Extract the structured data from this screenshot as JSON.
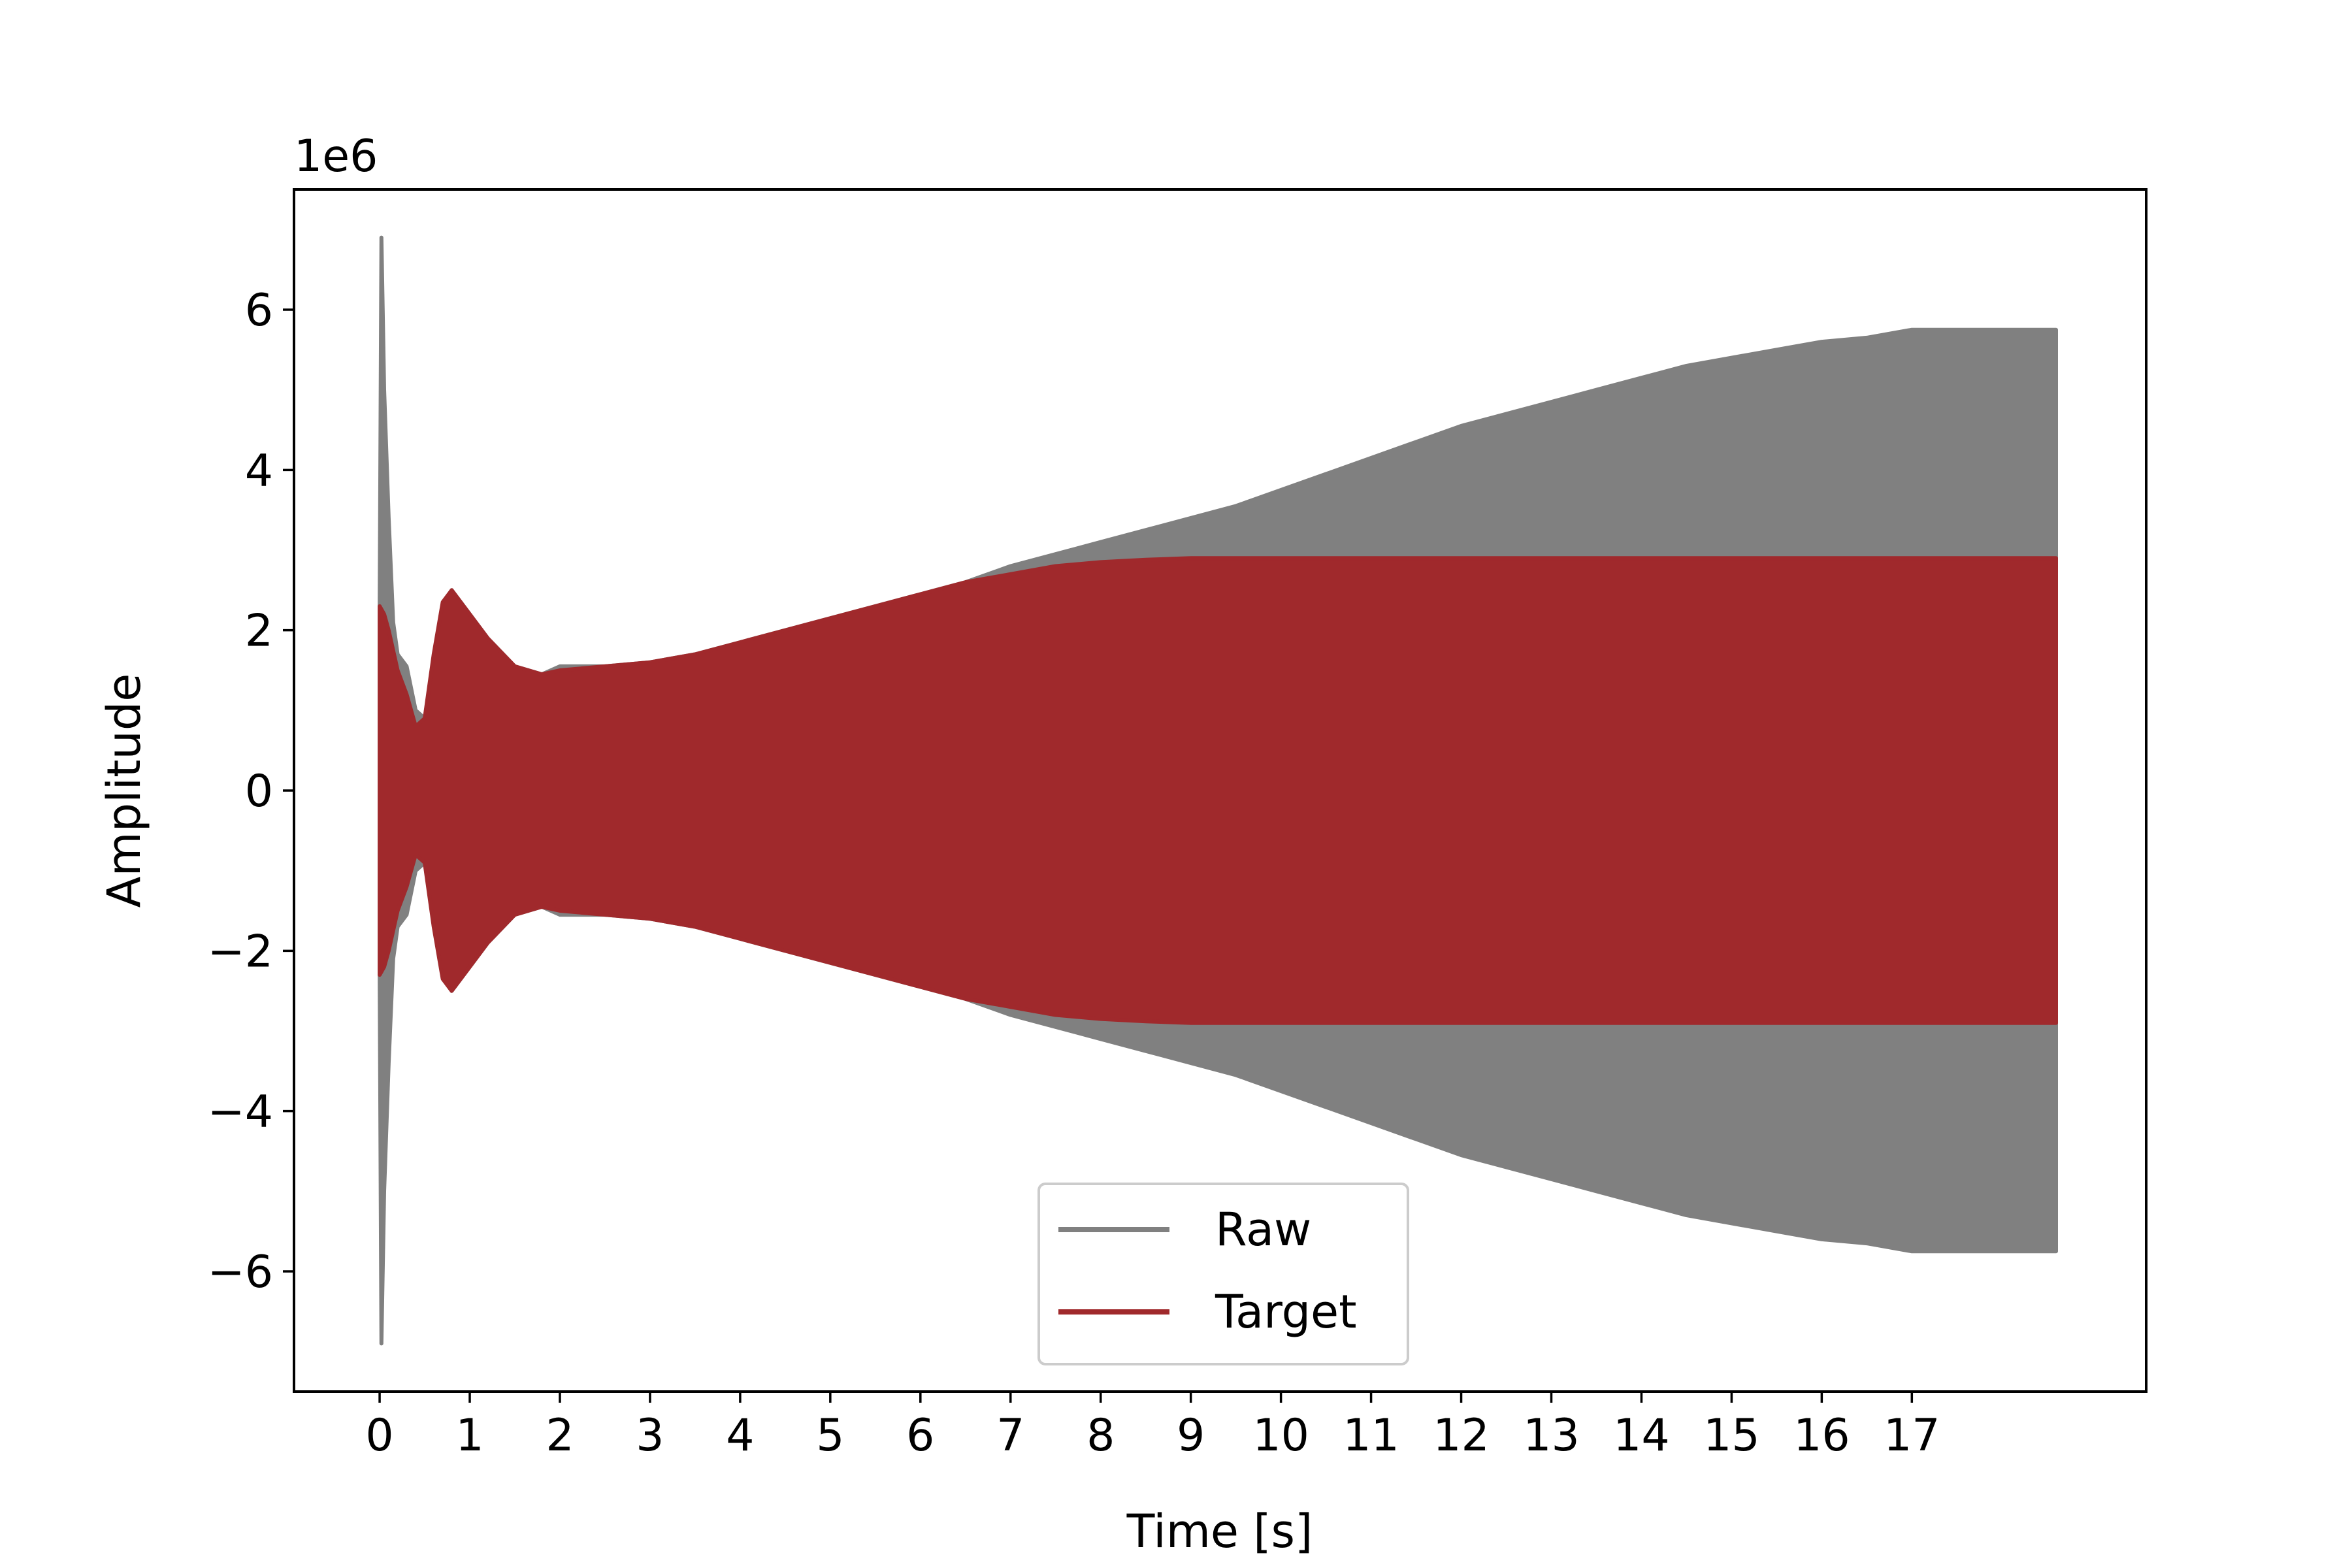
{
  "chart_data": {
    "type": "line",
    "title": "",
    "xlabel": "Time [s]",
    "ylabel": "Amplitude",
    "y_offset_label": "1e6",
    "xlim": [
      -0.95,
      19.6
    ],
    "ylim": [
      -7.5,
      7.5
    ],
    "x_ticks": [
      0,
      1,
      2,
      3,
      4,
      5,
      6,
      7,
      8,
      9,
      10,
      11,
      12,
      13,
      14,
      15,
      16,
      17
    ],
    "y_ticks": [
      -6,
      -4,
      -2,
      0,
      2,
      4,
      6
    ],
    "y_tick_labels": [
      "−6",
      "−4",
      "−2",
      "0",
      "2",
      "4",
      "6"
    ],
    "grid": false,
    "legend": {
      "placement": "lower-center",
      "entries": [
        "Raw",
        "Target"
      ]
    },
    "series": [
      {
        "name": "Raw",
        "color": "#808080",
        "envelope": {
          "x": [
            0.0,
            0.02,
            0.05,
            0.1,
            0.15,
            0.2,
            0.3,
            0.4,
            0.5,
            0.6,
            0.7,
            0.8,
            1.0,
            1.2,
            1.5,
            1.8,
            2.0,
            2.5,
            3.0,
            3.5,
            4.0,
            4.5,
            5.0,
            5.5,
            6.0,
            6.5,
            7.0,
            7.5,
            8.0,
            8.5,
            9.0,
            9.5,
            10.0,
            10.5,
            11.0,
            11.5,
            12.0,
            12.5,
            13.0,
            13.5,
            14.0,
            14.5,
            15.0,
            15.5,
            16.0,
            16.5,
            17.0,
            17.5,
            18.0,
            18.6
          ],
          "upper": [
            2.3,
            6.9,
            5.0,
            3.4,
            2.1,
            1.7,
            1.55,
            1.0,
            0.9,
            1.6,
            2.3,
            2.5,
            2.2,
            1.9,
            1.55,
            1.45,
            1.55,
            1.55,
            1.6,
            1.7,
            1.85,
            2.0,
            2.15,
            2.3,
            2.45,
            2.6,
            2.8,
            2.95,
            3.1,
            3.25,
            3.4,
            3.55,
            3.75,
            3.95,
            4.15,
            4.35,
            4.55,
            4.7,
            4.85,
            5.0,
            5.15,
            5.3,
            5.4,
            5.5,
            5.6,
            5.65,
            5.75,
            5.75,
            5.75,
            5.75
          ]
        }
      },
      {
        "name": "Target",
        "color": "#a0292c",
        "envelope": {
          "x": [
            0.0,
            0.05,
            0.1,
            0.2,
            0.3,
            0.4,
            0.5,
            0.6,
            0.7,
            0.8,
            1.0,
            1.2,
            1.5,
            1.8,
            2.0,
            2.5,
            3.0,
            3.5,
            4.0,
            4.5,
            5.0,
            5.5,
            6.0,
            6.5,
            7.0,
            7.5,
            8.0,
            8.5,
            9.0,
            10.0,
            12.0,
            14.0,
            16.0,
            18.0,
            18.6
          ],
          "upper": [
            2.3,
            2.2,
            2.0,
            1.5,
            1.2,
            0.8,
            0.9,
            1.7,
            2.35,
            2.5,
            2.2,
            1.9,
            1.55,
            1.45,
            1.5,
            1.55,
            1.6,
            1.7,
            1.85,
            2.0,
            2.15,
            2.3,
            2.45,
            2.6,
            2.7,
            2.8,
            2.85,
            2.88,
            2.9,
            2.9,
            2.9,
            2.9,
            2.9,
            2.9,
            2.9
          ]
        }
      }
    ]
  }
}
